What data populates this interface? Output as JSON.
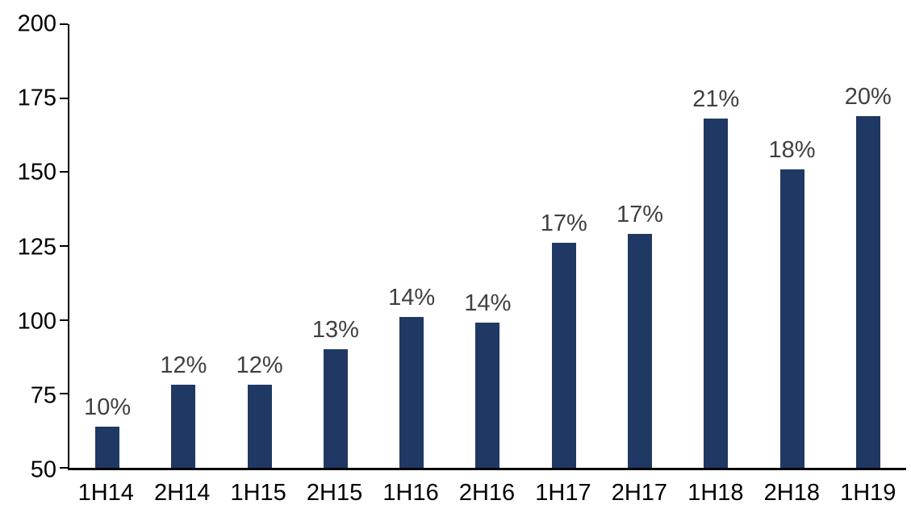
{
  "chart_data": {
    "type": "bar",
    "title": "",
    "xlabel": "",
    "ylabel": "",
    "categories": [
      "1H14",
      "2H14",
      "1H15",
      "2H15",
      "1H16",
      "2H16",
      "1H17",
      "2H17",
      "1H18",
      "2H18",
      "1H19"
    ],
    "values": [
      64,
      78,
      78,
      90,
      101,
      99,
      126,
      129,
      168,
      151,
      169
    ],
    "bar_labels": [
      "10%",
      "12%",
      "12%",
      "13%",
      "14%",
      "14%",
      "17%",
      "17%",
      "21%",
      "18%",
      "20%"
    ],
    "ylim": [
      50,
      200
    ],
    "yticks": [
      50,
      75,
      100,
      125,
      150,
      175,
      200
    ],
    "grid": false,
    "legend": false,
    "colors": {
      "bar": "#1f3864",
      "bar_label": "#404040",
      "axis": "#000000",
      "tick_text": "#000000",
      "background": "#ffffff"
    }
  }
}
